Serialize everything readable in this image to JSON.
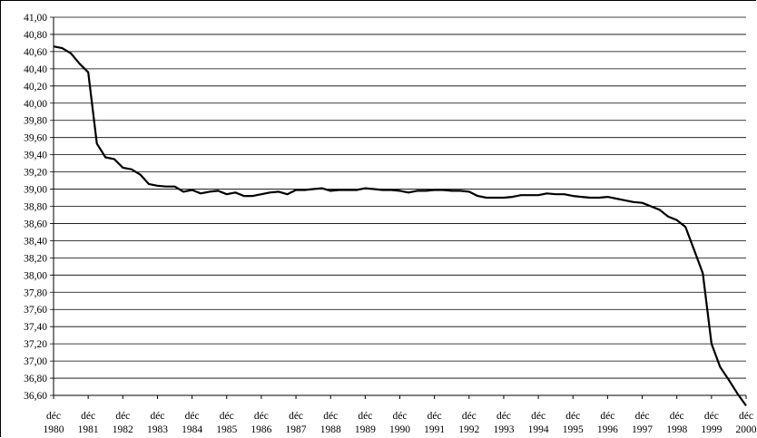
{
  "chart_data": {
    "type": "line",
    "title": "",
    "xlabel": "",
    "ylabel": "",
    "x_tick_labels": [
      {
        "top": "déc",
        "bottom": "1980"
      },
      {
        "top": "déc",
        "bottom": "1981"
      },
      {
        "top": "déc",
        "bottom": "1982"
      },
      {
        "top": "déc",
        "bottom": "1983"
      },
      {
        "top": "déc",
        "bottom": "1984"
      },
      {
        "top": "déc",
        "bottom": "1985"
      },
      {
        "top": "déc",
        "bottom": "1986"
      },
      {
        "top": "déc",
        "bottom": "1987"
      },
      {
        "top": "déc",
        "bottom": "1988"
      },
      {
        "top": "déc",
        "bottom": "1989"
      },
      {
        "top": "déc",
        "bottom": "1990"
      },
      {
        "top": "déc",
        "bottom": "1991"
      },
      {
        "top": "déc",
        "bottom": "1992"
      },
      {
        "top": "déc",
        "bottom": "1993"
      },
      {
        "top": "déc",
        "bottom": "1994"
      },
      {
        "top": "déc",
        "bottom": "1995"
      },
      {
        "top": "déc",
        "bottom": "1996"
      },
      {
        "top": "déc",
        "bottom": "1997"
      },
      {
        "top": "déc",
        "bottom": "1998"
      },
      {
        "top": "déc",
        "bottom": "1999"
      },
      {
        "top": "déc",
        "bottom": "2000"
      }
    ],
    "y_tick_labels": [
      "36,60",
      "36,80",
      "37,00",
      "37,20",
      "37,40",
      "37,60",
      "37,80",
      "38,00",
      "38,20",
      "38,40",
      "38,60",
      "38,80",
      "39,00",
      "39,20",
      "39,40",
      "39,60",
      "39,80",
      "40,00",
      "40,20",
      "40,40",
      "40,60",
      "40,80",
      "41,00"
    ],
    "ylim": [
      36.6,
      41.0
    ],
    "xlim": [
      1980.92,
      2000.92
    ],
    "grid": "horizontal",
    "legend": "none",
    "line_color": "#000000",
    "series": [
      {
        "x": [
          1980.92,
          1981.17,
          1981.42,
          1981.67,
          1981.92,
          1982.17,
          1982.42,
          1982.67,
          1982.92,
          1983.17,
          1983.42,
          1983.67,
          1983.92,
          1984.17,
          1984.42,
          1984.67,
          1984.92,
          1985.17,
          1985.42,
          1985.67,
          1985.92,
          1986.17,
          1986.42,
          1986.67,
          1986.92,
          1987.17,
          1987.42,
          1987.67,
          1987.92,
          1988.17,
          1988.42,
          1988.67,
          1988.92,
          1989.17,
          1989.42,
          1989.67,
          1989.92,
          1990.17,
          1990.42,
          1990.67,
          1990.92,
          1991.17,
          1991.42,
          1991.67,
          1991.92,
          1992.17,
          1992.42,
          1992.67,
          1992.92,
          1993.17,
          1993.42,
          1993.67,
          1993.92,
          1994.17,
          1994.42,
          1994.67,
          1994.92,
          1995.17,
          1995.42,
          1995.67,
          1995.92,
          1996.17,
          1996.42,
          1996.67,
          1996.92,
          1997.17,
          1997.42,
          1997.67,
          1997.92,
          1998.17,
          1998.42,
          1998.67,
          1998.92,
          1999.17,
          1999.42,
          1999.67,
          1999.92,
          2000.17,
          2000.42,
          2000.67,
          2000.92
        ],
        "y": [
          40.66,
          40.64,
          40.58,
          40.46,
          40.36,
          39.53,
          39.37,
          39.35,
          39.25,
          39.23,
          39.17,
          39.06,
          39.04,
          39.03,
          39.03,
          38.97,
          38.99,
          38.95,
          38.97,
          38.98,
          38.94,
          38.96,
          38.92,
          38.92,
          38.94,
          38.96,
          38.97,
          38.94,
          38.99,
          38.99,
          39.0,
          39.01,
          38.98,
          38.99,
          38.99,
          38.99,
          39.01,
          39.0,
          38.99,
          38.99,
          38.98,
          38.96,
          38.98,
          38.98,
          38.99,
          38.99,
          38.98,
          38.98,
          38.97,
          38.92,
          38.9,
          38.9,
          38.9,
          38.91,
          38.93,
          38.93,
          38.93,
          38.95,
          38.94,
          38.94,
          38.92,
          38.91,
          38.9,
          38.9,
          38.91,
          38.89,
          38.87,
          38.85,
          38.84,
          38.8,
          38.76,
          38.68,
          38.64,
          38.56,
          38.29,
          38.02,
          37.2,
          36.93,
          36.78,
          36.62,
          36.48
        ]
      }
    ]
  }
}
